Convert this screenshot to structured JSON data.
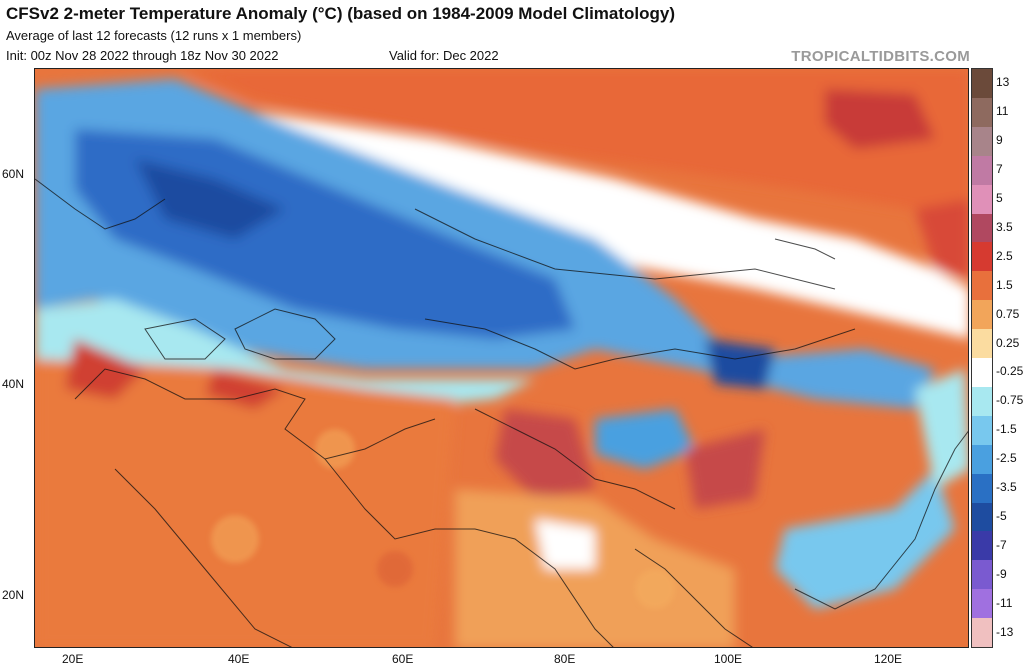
{
  "header": {
    "title": "CFSv2 2-meter Temperature Anomaly (°C) (based on 1984-2009 Model Climatology)",
    "subtitle": "Average of last 12 forecasts (12 runs x 1 members)",
    "init": "Init: 00z Nov 28 2022 through 18z Nov 30 2022",
    "valid": "Valid for: Dec 2022",
    "brand": "TROPICALTIDBITS.COM"
  },
  "axes": {
    "lat_labels": [
      "60N",
      "40N",
      "20N"
    ],
    "lon_labels": [
      "20E",
      "40E",
      "60E",
      "80E",
      "100E",
      "120E"
    ]
  },
  "colorbar": {
    "labels": [
      "13",
      "11",
      "9",
      "7",
      "5",
      "3.5",
      "2.5",
      "1.5",
      "0.75",
      "0.25",
      "-0.25",
      "-0.75",
      "-1.5",
      "-2.5",
      "-3.5",
      "-5",
      "-7",
      "-9",
      "-11",
      "-13"
    ],
    "colors": [
      "#6b4a3a",
      "#8e6a5f",
      "#a8848a",
      "#c07aa4",
      "#e090b8",
      "#b04860",
      "#d63a30",
      "#e8703c",
      "#f2a55a",
      "#fbdca0",
      "#ffffff",
      "#a8e8f0",
      "#78c8ee",
      "#4aa0e0",
      "#2a70c4",
      "#1e4ca0",
      "#3a3aa8",
      "#7a5ad0",
      "#a070e0",
      "#f0c0c0"
    ]
  }
}
